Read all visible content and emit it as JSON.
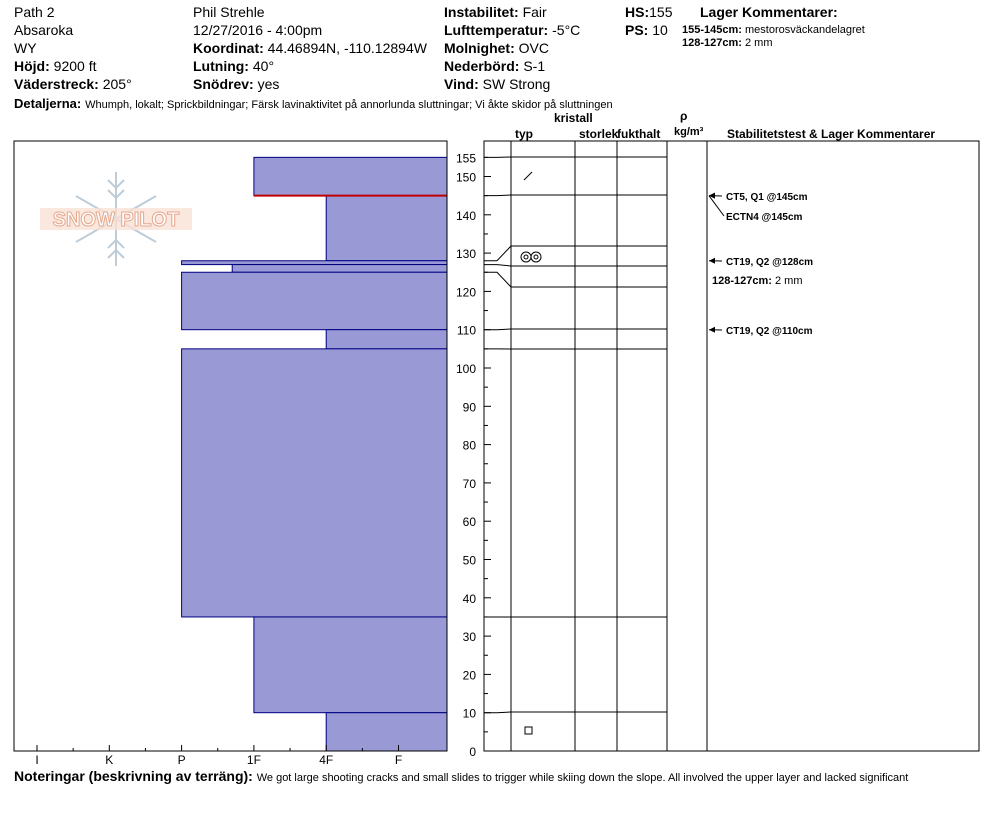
{
  "header": {
    "location": "Path 2",
    "range": "Absaroka",
    "state": "WY",
    "elevation_label": "Höjd:",
    "elevation": "9200 ft",
    "aspect_label": "Väderstreck:",
    "aspect": "205°",
    "observer": "Phil Strehle",
    "datetime": "12/27/2016 - 4:00pm",
    "coord_label": "Koordinat:",
    "coord": "44.46894N, -110.12894W",
    "slope_label": "Lutning:",
    "slope": "40°",
    "drift_label": "Snödrev:",
    "drift": "yes",
    "instability_label": "Instabilitet:",
    "instability": "Fair",
    "airtemp_label": "Lufttemperatur:",
    "airtemp": "-5°C",
    "sky_label": "Molnighet:",
    "sky": "OVC",
    "precip_label": "Nederbörd:",
    "precip": "S-1",
    "wind_label": "Vind:",
    "wind": "SW Strong",
    "hs_label": "HS:",
    "hs": "155",
    "ps_label": "PS:",
    "ps": "10",
    "layer_comments_title": "Lager Kommentarer:",
    "layer_comment_1_range": "155-145cm:",
    "layer_comment_1_text": "mestorosväckandelagret",
    "layer_comment_2_range": "128-127cm:",
    "layer_comment_2_text": "2 mm",
    "details_label": "Detaljerna:",
    "details": "Whumph, lokalt;  Sprickbildningar;  Färsk lavinaktivitet på annorlunda sluttningar;  Vi åkte skidor på sluttningen"
  },
  "logo": {
    "text": "SNOW PILOT"
  },
  "columns": {
    "type": "typ",
    "crystal": "kristall",
    "size": "storlek",
    "moisture": "fukthalt",
    "rho": "ρ",
    "density_unit": "kg/m³",
    "stability": "Stabilitetstest & Lager Kommentarer"
  },
  "notes": {
    "label": "Noteringar (beskrivning av terräng):",
    "text": "We got large shooting cracks and small slides to trigger while skiing down the slope.  All involved the upper layer and lacked significant"
  },
  "annotations": [
    {
      "text": "CT5, Q1 @145cm",
      "height": 145
    },
    {
      "text": "ECTN4 @145cm",
      "height": 145
    },
    {
      "text": "CT19, Q2 @128cm",
      "height": 128
    },
    {
      "text": "CT19, Q2 @110cm",
      "height": 110
    }
  ],
  "layer_note": {
    "range": "128-127cm:",
    "text": "2 mm"
  },
  "colors": {
    "layer_fill": "#9999d6",
    "layer_stroke": "#000080",
    "weak_layer": "#c00000"
  },
  "chart_data": {
    "type": "bar",
    "orientation": "horizontal",
    "x_categories": [
      "I",
      "K",
      "P",
      "1F",
      "4F",
      "F"
    ],
    "x_category_index": {
      "I": 0,
      "K": 1,
      "P": 2,
      "1F": 3,
      "4F": 4,
      "F": 5
    },
    "ylim": [
      0,
      160
    ],
    "yticks": [
      0,
      10,
      20,
      30,
      40,
      50,
      60,
      70,
      80,
      90,
      100,
      110,
      120,
      130,
      140,
      150,
      155
    ],
    "layers": [
      {
        "top": 155,
        "bottom": 145,
        "hardness": "1F",
        "hardness_index": 3.0
      },
      {
        "top": 145,
        "bottom": 128,
        "hardness": "4F",
        "hardness_index": 4.0
      },
      {
        "top": 128,
        "bottom": 127,
        "hardness": "P",
        "hardness_index": 2.0
      },
      {
        "top": 127,
        "bottom": 125,
        "hardness": "P-1F",
        "hardness_index": 2.7
      },
      {
        "top": 125,
        "bottom": 110,
        "hardness": "P",
        "hardness_index": 2.0
      },
      {
        "top": 110,
        "bottom": 105,
        "hardness": "4F",
        "hardness_index": 4.0
      },
      {
        "top": 105,
        "bottom": 35,
        "hardness": "P",
        "hardness_index": 2.0
      },
      {
        "top": 35,
        "bottom": 10,
        "hardness": "1F",
        "hardness_index": 3.0
      },
      {
        "top": 10,
        "bottom": 0,
        "hardness": "4F",
        "hardness_index": 4.0
      }
    ],
    "weak_layer": 145,
    "crystal_symbols": [
      {
        "height": 150,
        "symbol": "/"
      },
      {
        "height": 128,
        "symbol": "◎◎"
      },
      {
        "height": 5,
        "symbol": "□"
      }
    ]
  }
}
